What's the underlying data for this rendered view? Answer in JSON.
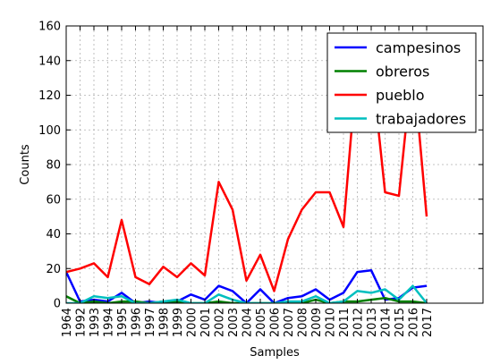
{
  "chart_data": {
    "type": "line",
    "xlabel": "Samples",
    "ylabel": "Counts",
    "ylim": [
      0,
      160
    ],
    "yticks": [
      0,
      20,
      40,
      60,
      80,
      100,
      120,
      140,
      160
    ],
    "grid": true,
    "legend_position": "top-right",
    "categories": [
      "1964",
      "1992",
      "1993",
      "1994",
      "1995",
      "1996",
      "1997",
      "1998",
      "1999",
      "2000",
      "2001",
      "2002",
      "2003",
      "2004",
      "2005",
      "2006",
      "2007",
      "2008",
      "2009",
      "2010",
      "2011",
      "2012",
      "2013",
      "2014",
      "2015",
      "2016",
      "2017"
    ],
    "series": [
      {
        "name": "campesinos",
        "color": "#0000ff",
        "values": [
          18,
          1,
          2,
          1,
          6,
          0,
          1,
          0,
          1,
          5,
          2,
          10,
          7,
          0,
          8,
          0,
          3,
          4,
          8,
          2,
          6,
          18,
          19,
          2,
          3,
          9,
          10
        ]
      },
      {
        "name": "obreros",
        "color": "#008000",
        "values": [
          4,
          0,
          1,
          0,
          1,
          1,
          0,
          1,
          1,
          0,
          0,
          1,
          0,
          0,
          0,
          0,
          0,
          0,
          2,
          0,
          1,
          1,
          2,
          3,
          1,
          1,
          0
        ]
      },
      {
        "name": "pueblo",
        "color": "#ff0000",
        "values": [
          18,
          20,
          23,
          15,
          48,
          15,
          11,
          21,
          15,
          23,
          16,
          70,
          54,
          13,
          28,
          7,
          37,
          54,
          64,
          64,
          44,
          140,
          140,
          64,
          62,
          140,
          50
        ]
      },
      {
        "name": "trabajadores",
        "color": "#00bfbf",
        "values": [
          0,
          0,
          4,
          3,
          4,
          0,
          0,
          1,
          2,
          0,
          0,
          5,
          2,
          0,
          0,
          0,
          1,
          1,
          4,
          0,
          1,
          7,
          6,
          8,
          2,
          10,
          0
        ]
      }
    ]
  }
}
